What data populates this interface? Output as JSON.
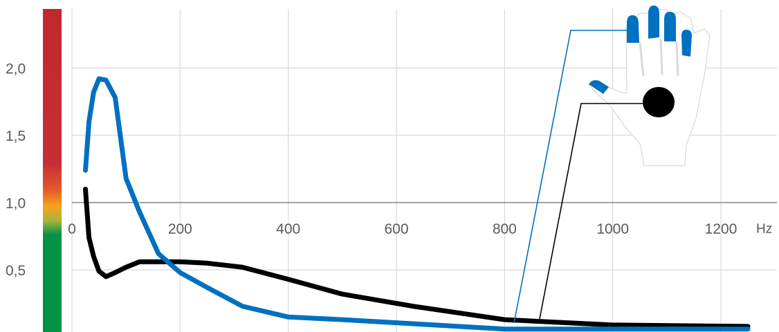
{
  "chart_data": {
    "type": "line",
    "x_unit": "Hz",
    "xlim": [
      0,
      1300
    ],
    "ylim": [
      0,
      2.5
    ],
    "x_ticks": [
      "0",
      "200",
      "400",
      "600",
      "800",
      "1000",
      "1200"
    ],
    "y_ticks": [
      "0,5",
      "1,0",
      "1,5",
      "2,0"
    ],
    "y_tick_values": [
      0.5,
      1.0,
      1.5,
      2.0
    ],
    "x_tick_values": [
      0,
      200,
      400,
      600,
      800,
      1000,
      1200
    ],
    "reference_line_y": 1.0,
    "grid": true,
    "series": [
      {
        "color": "#0070C0",
        "marker": "fingers",
        "points": [
          [
            25,
            1.24
          ],
          [
            31.5,
            1.6
          ],
          [
            40,
            1.82
          ],
          [
            50,
            1.92
          ],
          [
            63,
            1.91
          ],
          [
            80,
            1.78
          ],
          [
            100,
            1.18
          ],
          [
            125,
            0.93
          ],
          [
            160,
            0.62
          ],
          [
            200,
            0.48
          ],
          [
            250,
            0.37
          ],
          [
            315,
            0.23
          ],
          [
            400,
            0.15
          ],
          [
            500,
            0.13
          ],
          [
            630,
            0.1
          ],
          [
            800,
            0.06
          ],
          [
            1000,
            0.06
          ],
          [
            1250,
            0.06
          ]
        ]
      },
      {
        "color": "#000000",
        "marker": "palm",
        "points": [
          [
            25,
            1.1
          ],
          [
            31.5,
            0.74
          ],
          [
            40,
            0.6
          ],
          [
            50,
            0.49
          ],
          [
            63,
            0.45
          ],
          [
            80,
            0.48
          ],
          [
            100,
            0.52
          ],
          [
            125,
            0.56
          ],
          [
            160,
            0.56
          ],
          [
            200,
            0.56
          ],
          [
            250,
            0.55
          ],
          [
            315,
            0.52
          ],
          [
            400,
            0.43
          ],
          [
            500,
            0.32
          ],
          [
            630,
            0.23
          ],
          [
            800,
            0.13
          ],
          [
            1000,
            0.09
          ],
          [
            1250,
            0.08
          ]
        ]
      }
    ],
    "risk_scale": {
      "colors": [
        "#009247",
        "#F6A21E",
        "#E0443C",
        "#BE1E2D"
      ]
    }
  }
}
